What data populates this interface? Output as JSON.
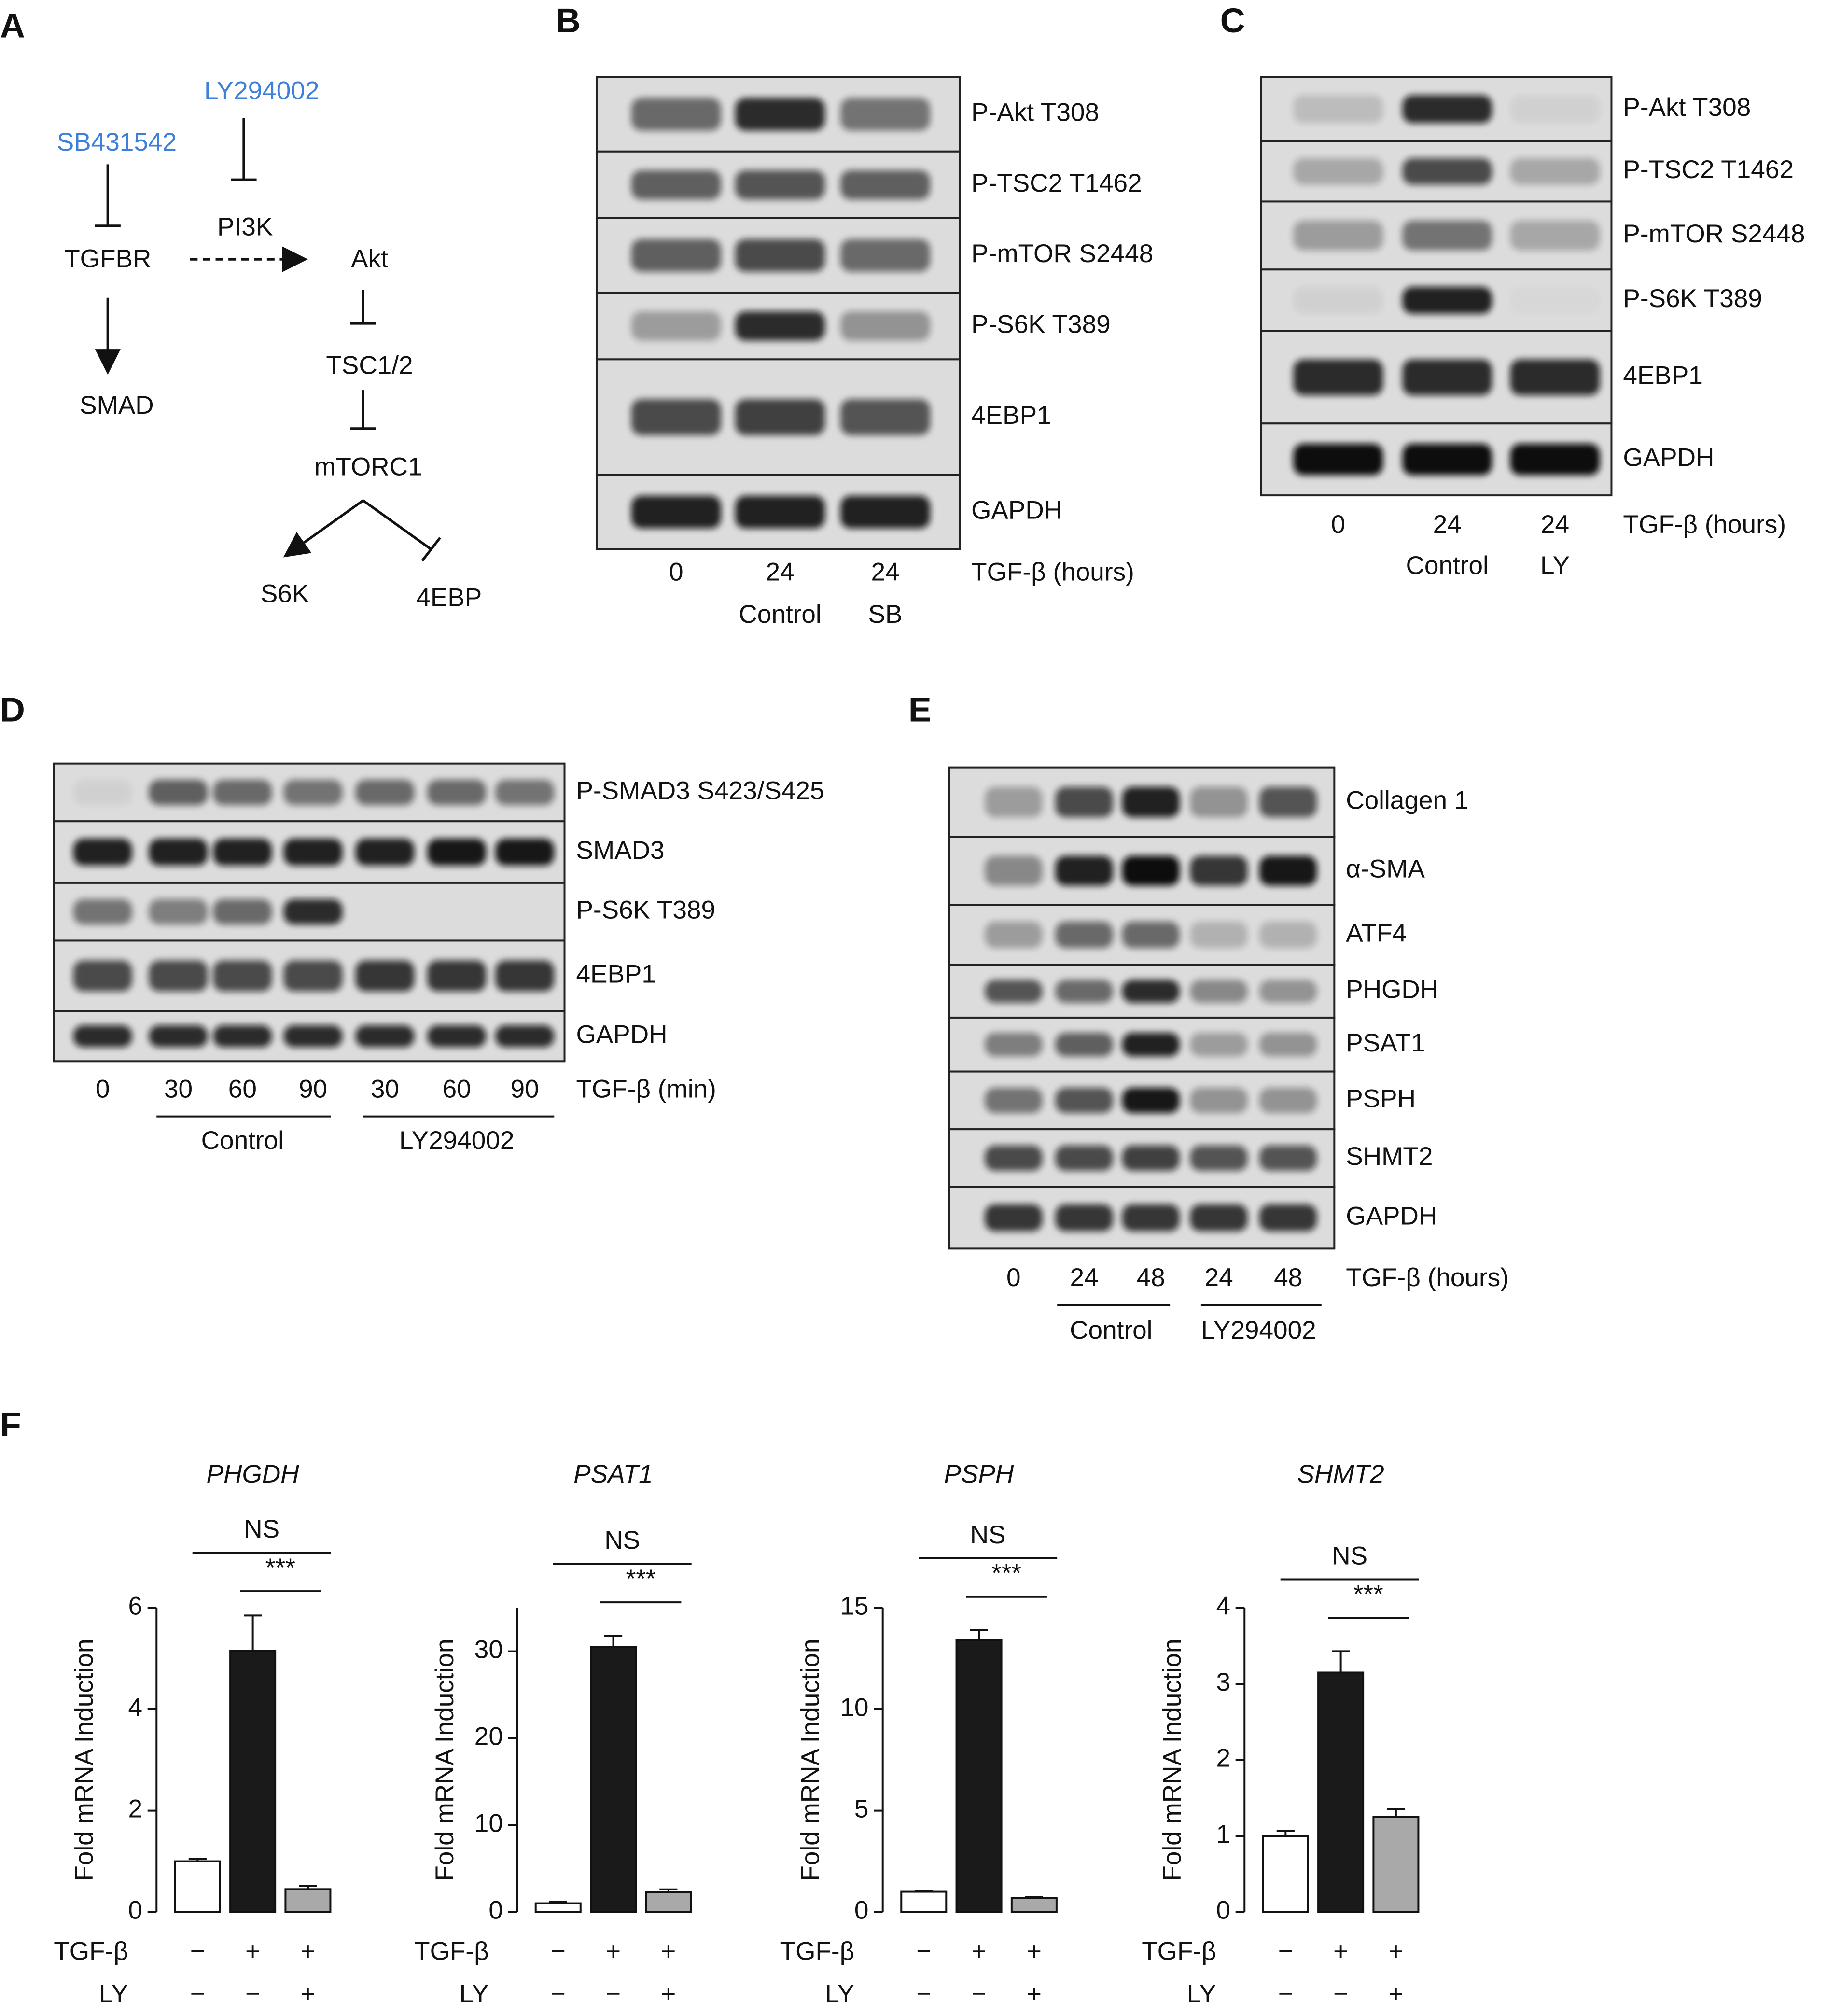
{
  "panels": {
    "A": {
      "letter": "A",
      "nodes": [
        "SB431542",
        "LY294002",
        "PI3K",
        "TGFBR",
        "Akt",
        "SMAD",
        "TSC1/2",
        "mTORC1",
        "S6K",
        "4EBP"
      ]
    },
    "B": {
      "letter": "B",
      "rows": [
        "P-Akt T308",
        "P-TSC2 T1462",
        "P-mTOR S2448",
        "P-S6K T389",
        "4EBP1",
        "GAPDH"
      ],
      "lanes": [
        "0",
        "24",
        "24"
      ],
      "groups": [
        "Control",
        "SB"
      ],
      "axis_label": "TGF-β (hours)"
    },
    "C": {
      "letter": "C",
      "rows": [
        "P-Akt T308",
        "P-TSC2 T1462",
        "P-mTOR S2448",
        "P-S6K T389",
        "4EBP1",
        "GAPDH"
      ],
      "lanes": [
        "0",
        "24",
        "24"
      ],
      "groups": [
        "Control",
        "LY"
      ],
      "axis_label": "TGF-β (hours)"
    },
    "D": {
      "letter": "D",
      "rows": [
        "P-SMAD3 S423/S425",
        "SMAD3",
        "P-S6K T389",
        "4EBP1",
        "GAPDH"
      ],
      "lanes": [
        "0",
        "30",
        "60",
        "90",
        "30",
        "60",
        "90"
      ],
      "groups": [
        "Control",
        "LY294002"
      ],
      "axis_label": "TGF-β (min)"
    },
    "E": {
      "letter": "E",
      "rows": [
        "Collagen 1",
        "α-SMA",
        "ATF4",
        "PHGDH",
        "PSAT1",
        "PSPH",
        "SHMT2",
        "GAPDH"
      ],
      "lanes": [
        "0",
        "24",
        "48",
        "24",
        "48"
      ],
      "groups": [
        "Control",
        "LY294002"
      ],
      "axis_label": "TGF-β (hours)"
    },
    "F": {
      "letter": "F"
    }
  },
  "chart_data": [
    {
      "type": "bar",
      "title": "PHGDH",
      "ylabel": "Fold mRNA Induction",
      "values": [
        1.0,
        5.15,
        0.45
      ],
      "errors": [
        0.05,
        0.7,
        0.07
      ],
      "colors": [
        "#ffffff",
        "#1a1a1a",
        "#a9a9a9"
      ],
      "ylim": [
        0,
        6
      ],
      "yticks": [
        0,
        2,
        4,
        6
      ],
      "conditions": [
        {
          "label": "TGF-β",
          "values": [
            "−",
            "+",
            "+"
          ]
        },
        {
          "label": "LY",
          "values": [
            "−",
            "−",
            "+"
          ]
        }
      ],
      "annotations": [
        "NS",
        "***"
      ]
    },
    {
      "type": "bar",
      "title": "PSAT1",
      "ylabel": "Fold mRNA Induction",
      "values": [
        1.0,
        30.5,
        2.3
      ],
      "errors": [
        0.2,
        1.3,
        0.3
      ],
      "colors": [
        "#ffffff",
        "#1a1a1a",
        "#a9a9a9"
      ],
      "ylim": [
        0,
        35
      ],
      "yticks": [
        0,
        10,
        20,
        30
      ],
      "conditions": [
        {
          "label": "TGF-β",
          "values": [
            "−",
            "+",
            "+"
          ]
        },
        {
          "label": "LY",
          "values": [
            "−",
            "−",
            "+"
          ]
        }
      ],
      "annotations": [
        "NS",
        "***"
      ]
    },
    {
      "type": "bar",
      "title": "PSPH",
      "ylabel": "Fold mRNA Induction",
      "values": [
        1.0,
        13.4,
        0.7
      ],
      "errors": [
        0.05,
        0.5,
        0.05
      ],
      "colors": [
        "#ffffff",
        "#1a1a1a",
        "#a9a9a9"
      ],
      "ylim": [
        0,
        15
      ],
      "yticks": [
        0,
        5,
        10,
        15
      ],
      "conditions": [
        {
          "label": "TGF-β",
          "values": [
            "−",
            "+",
            "+"
          ]
        },
        {
          "label": "LY",
          "values": [
            "−",
            "−",
            "+"
          ]
        }
      ],
      "annotations": [
        "NS",
        "***"
      ]
    },
    {
      "type": "bar",
      "title": "SHMT2",
      "ylabel": "Fold mRNA Induction",
      "values": [
        1.0,
        3.15,
        1.25
      ],
      "errors": [
        0.07,
        0.28,
        0.1
      ],
      "colors": [
        "#ffffff",
        "#1a1a1a",
        "#a9a9a9"
      ],
      "ylim": [
        0,
        4
      ],
      "yticks": [
        0,
        1,
        2,
        3,
        4
      ],
      "conditions": [
        {
          "label": "TGF-β",
          "values": [
            "−",
            "+",
            "+"
          ]
        },
        {
          "label": "LY",
          "values": [
            "−",
            "−",
            "+"
          ]
        }
      ],
      "annotations": [
        "NS",
        "***"
      ]
    }
  ]
}
